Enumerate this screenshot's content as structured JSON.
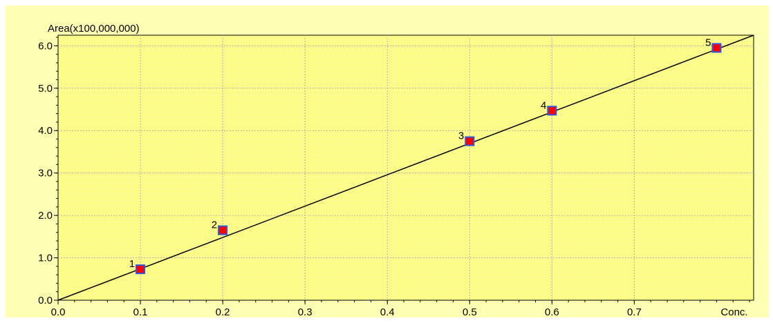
{
  "chart_data": {
    "type": "scatter",
    "title": "",
    "ylabel": "Area(x100,000,000)",
    "xlabel": "Conc.",
    "xlim": [
      0.0,
      0.845
    ],
    "ylim": [
      0.0,
      6.25
    ],
    "x_ticks": [
      "0.0",
      "0.1",
      "0.2",
      "0.3",
      "0.4",
      "0.5",
      "0.6",
      "0.7"
    ],
    "y_ticks": [
      "0.0",
      "1.0",
      "2.0",
      "3.0",
      "4.0",
      "5.0",
      "6.0"
    ],
    "grid": true,
    "points": [
      {
        "label": "1",
        "x": 0.1,
        "y": 0.73
      },
      {
        "label": "2",
        "x": 0.2,
        "y": 1.65
      },
      {
        "label": "3",
        "x": 0.5,
        "y": 3.75
      },
      {
        "label": "4",
        "x": 0.6,
        "y": 4.47
      },
      {
        "label": "5",
        "x": 0.8,
        "y": 5.95
      }
    ],
    "fit_line": {
      "x": [
        0.0,
        0.845
      ],
      "y": [
        0.0,
        6.25
      ]
    },
    "colors": {
      "plot_background": "#ffff80",
      "outer_background": "#ffffb3",
      "grid": "#b0b0b0",
      "marker_fill": "#ff0000",
      "marker_edge": "#3355dd",
      "line": "#000000"
    }
  }
}
